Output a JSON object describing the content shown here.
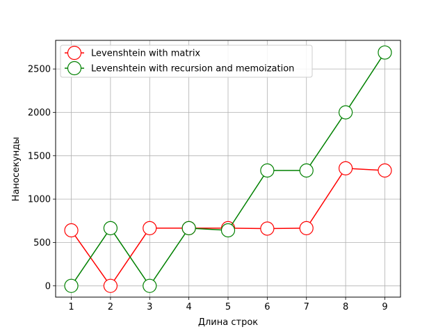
{
  "chart_data": {
    "type": "line",
    "title": "",
    "xlabel": "Длина строк",
    "ylabel": "Наносекунды",
    "x": [
      1,
      2,
      3,
      4,
      5,
      6,
      7,
      8,
      9
    ],
    "xlim": [
      0.6,
      9.4
    ],
    "ylim": [
      -130,
      2830
    ],
    "xticks": [
      "1",
      "2",
      "3",
      "4",
      "5",
      "6",
      "7",
      "8",
      "9"
    ],
    "yticks": [
      "0",
      "500",
      "1000",
      "1500",
      "2000",
      "2500"
    ],
    "ytick_values": [
      0,
      500,
      1000,
      1500,
      2000,
      2500
    ],
    "grid": true,
    "legend_position": "top-left",
    "series": [
      {
        "name": "Levenshtein with matrix",
        "color": "#ff0000",
        "marker": "open-circle",
        "values": [
          640,
          0,
          665,
          665,
          665,
          660,
          665,
          1355,
          1330
        ]
      },
      {
        "name": "Levenshtein with recursion and memoization",
        "color": "#008000",
        "marker": "open-circle",
        "values": [
          0,
          665,
          0,
          665,
          640,
          1330,
          1330,
          2000,
          2690
        ]
      }
    ]
  }
}
